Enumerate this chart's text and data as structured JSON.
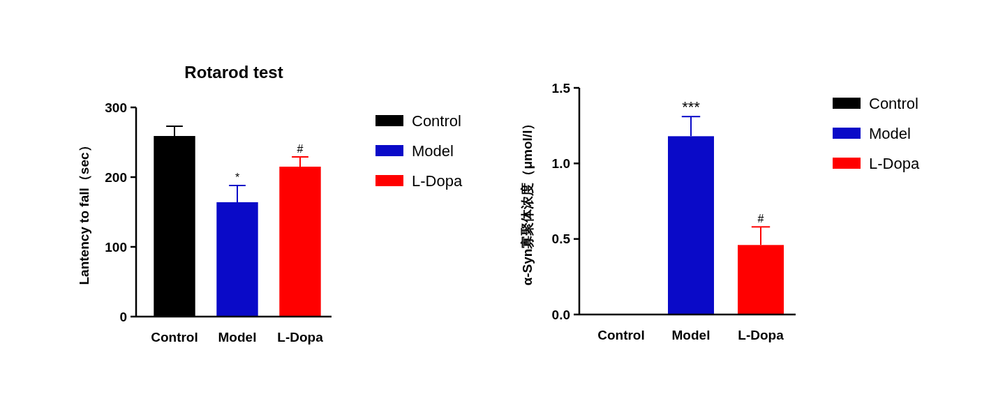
{
  "chart_data": [
    {
      "type": "bar",
      "title": "Rotarod test",
      "ylabel": "Lantency to fall（sec）",
      "categories": [
        "Control",
        "Model",
        "L-Dopa"
      ],
      "series": [
        {
          "name": "Control",
          "color": "#000000",
          "values": [
            259,
            null,
            null
          ],
          "errors": [
            [
              259,
              273
            ],
            null,
            null
          ]
        },
        {
          "name": "Model",
          "color": "#0a0ac8",
          "values": [
            null,
            164,
            null
          ],
          "errors": [
            null,
            [
              164,
              188
            ],
            null
          ]
        },
        {
          "name": "L-Dopa",
          "color": "#ff0000",
          "values": [
            null,
            null,
            215
          ],
          "errors": [
            null,
            null,
            [
              215,
              229
            ]
          ]
        }
      ],
      "ylim": [
        0,
        300
      ],
      "yticks": [
        0,
        100,
        200,
        300
      ],
      "legend": "right",
      "annotations": [
        {
          "text": "*",
          "x": "Model",
          "y": 188
        },
        {
          "text": "#",
          "x": "L-Dopa",
          "y": 229
        }
      ]
    },
    {
      "type": "bar",
      "ylabel": "α-Syn寡聚体浓度（μmol/l）",
      "categories": [
        "Control",
        "Model",
        "L-Dopa"
      ],
      "series": [
        {
          "name": "Control",
          "color": "#000000",
          "values": [
            0,
            null,
            null
          ]
        },
        {
          "name": "Model",
          "color": "#0a0ac8",
          "values": [
            null,
            1.18,
            null
          ],
          "errors": [
            null,
            [
              1.18,
              1.31
            ],
            null
          ]
        },
        {
          "name": "L-Dopa",
          "color": "#ff0000",
          "values": [
            null,
            null,
            0.46
          ],
          "errors": [
            null,
            null,
            [
              0.46,
              0.58
            ]
          ]
        }
      ],
      "ylim": [
        0,
        1.5
      ],
      "yticks": [
        {
          "value": 0,
          "label": "0.0"
        },
        {
          "value": 0.5,
          "label": "0.5"
        },
        {
          "value": 1,
          "label": "1.0"
        },
        {
          "value": 1.5,
          "label": "1.5"
        }
      ],
      "legend": "right",
      "annotations": [
        {
          "text": "***",
          "x": "Model",
          "y": 1.31
        },
        {
          "text": "#",
          "x": "L-Dopa",
          "y": 0.58
        }
      ]
    }
  ]
}
